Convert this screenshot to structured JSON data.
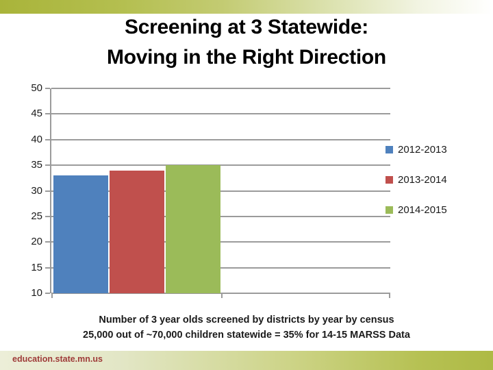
{
  "slide": {
    "title_line1": "Screening at 3 Statewide:",
    "title_line2": "Moving in the Right Direction"
  },
  "chart_data": {
    "type": "bar",
    "series": [
      {
        "name": "2012-2013",
        "value": 33,
        "color": "#4f81bd"
      },
      {
        "name": "2013-2014",
        "value": 34,
        "color": "#c0504d"
      },
      {
        "name": "2014-2015",
        "value": 35,
        "color": "#9bbb59"
      }
    ],
    "title": "",
    "xlabel": "",
    "ylabel": "",
    "ylim": [
      10,
      50
    ],
    "yticks": [
      50,
      45,
      40,
      35,
      30,
      25,
      20,
      15,
      10
    ],
    "grid": true,
    "legend_position": "right"
  },
  "caption": {
    "line1": "Number of 3 year olds screened by districts by year by census",
    "line2": "25,000 out of ~70,000 children statewide = 35% for 14-15 MARSS Data"
  },
  "footer": {
    "url": "education.state.mn.us"
  },
  "colors": {
    "grid": "#9b9b9b",
    "accent_olive": "#a9b43a",
    "footer_left": "#eceed8",
    "footer_right": "#aeba45",
    "footer_text": "#9e3a38"
  }
}
